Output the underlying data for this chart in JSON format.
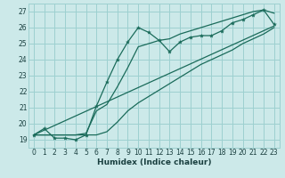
{
  "xlabel": "Humidex (Indice chaleur)",
  "ylabel": "",
  "xlim": [
    -0.5,
    23.5
  ],
  "ylim": [
    18.5,
    27.5
  ],
  "yticks": [
    19,
    20,
    21,
    22,
    23,
    24,
    25,
    26,
    27
  ],
  "xticks": [
    0,
    1,
    2,
    3,
    4,
    5,
    6,
    7,
    8,
    9,
    10,
    11,
    12,
    13,
    14,
    15,
    16,
    17,
    18,
    19,
    20,
    21,
    22,
    23
  ],
  "bg_color": "#cce9e9",
  "grid_color": "#9dd0d0",
  "line_color": "#1a6b5a",
  "main_series": [
    19.3,
    19.7,
    19.1,
    19.1,
    19.0,
    19.3,
    21.1,
    22.6,
    24.0,
    25.1,
    26.0,
    25.7,
    25.2,
    24.5,
    25.1,
    25.4,
    25.5,
    25.5,
    25.8,
    26.3,
    26.5,
    26.8,
    27.1,
    26.2
  ],
  "upper_line": [
    19.3,
    19.3,
    19.3,
    19.3,
    19.3,
    19.4,
    20.8,
    21.2,
    22.3,
    23.5,
    24.8,
    25.0,
    25.2,
    25.3,
    25.6,
    25.8,
    26.0,
    26.2,
    26.4,
    26.6,
    26.8,
    27.0,
    27.1,
    26.9
  ],
  "lower_line": [
    19.3,
    19.3,
    19.3,
    19.3,
    19.3,
    19.3,
    19.3,
    19.5,
    20.1,
    20.8,
    21.3,
    21.7,
    22.1,
    22.5,
    22.9,
    23.3,
    23.7,
    24.0,
    24.3,
    24.6,
    25.0,
    25.3,
    25.6,
    26.0
  ],
  "regression_line_x": [
    0,
    23
  ],
  "regression_line_y": [
    19.3,
    26.1
  ]
}
